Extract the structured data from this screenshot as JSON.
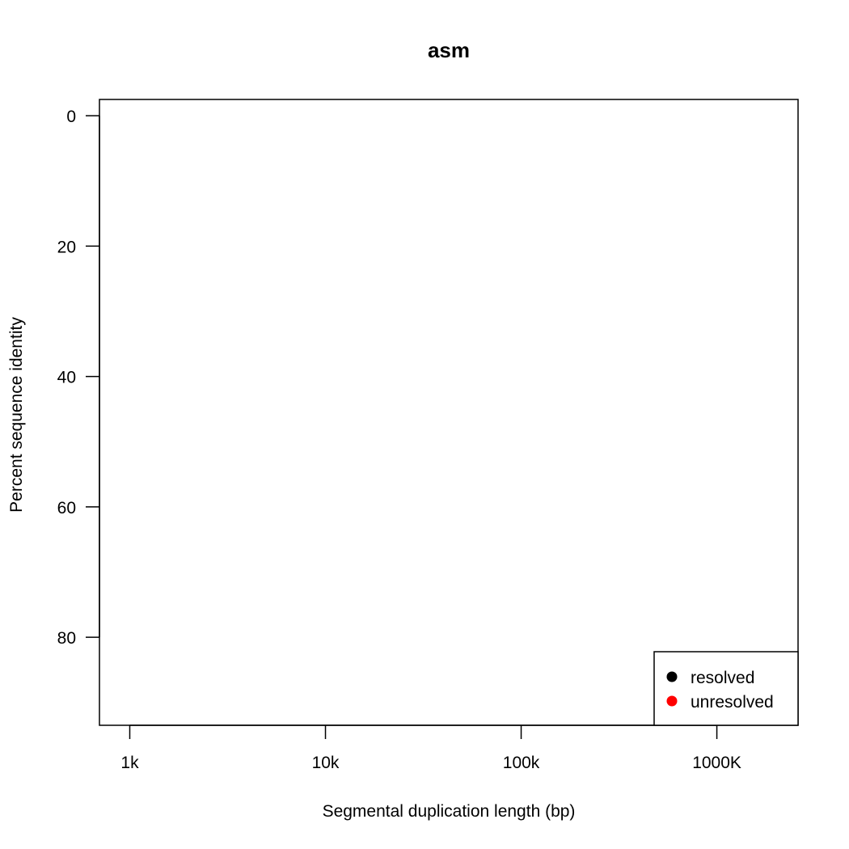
{
  "chart_data": {
    "type": "scatter",
    "title": "asm",
    "xlabel": "Segmental duplication length (bp)",
    "ylabel": "Percent sequence identity",
    "x_scale": "log10",
    "xlim": [
      700,
      2600000
    ],
    "x_ticks": [
      {
        "value": 1000,
        "label": "1k"
      },
      {
        "value": 10000,
        "label": "10k"
      },
      {
        "value": 100000,
        "label": "100k"
      },
      {
        "value": 1000000,
        "label": "1000K"
      }
    ],
    "y_reversed": true,
    "ylim": [
      -2.5,
      93.5
    ],
    "y_ticks": [
      {
        "value": 0,
        "label": "0"
      },
      {
        "value": 20,
        "label": "20"
      },
      {
        "value": 40,
        "label": "40"
      },
      {
        "value": 60,
        "label": "60"
      },
      {
        "value": 80,
        "label": "80"
      }
    ],
    "grid": false,
    "legend_position": "bottom-right",
    "series": [
      {
        "name": "resolved",
        "color": "#000000",
        "points": []
      },
      {
        "name": "unresolved",
        "color": "#ff0000",
        "points": []
      }
    ]
  }
}
